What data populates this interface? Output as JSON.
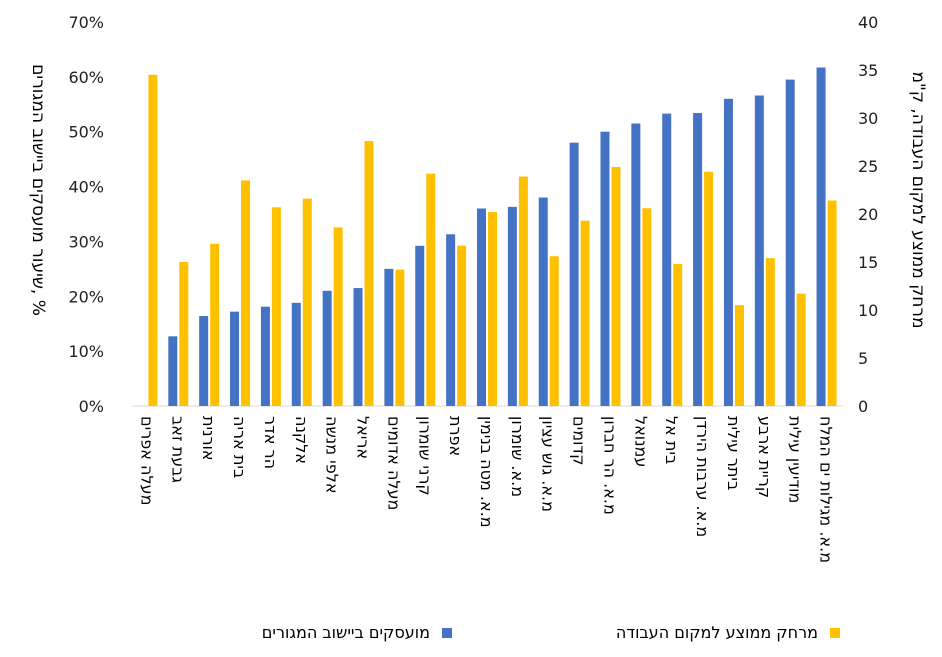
{
  "chart_data": {
    "type": "bar",
    "categories": [
      "מעלה אפרים",
      "גבעת זאב",
      "אורנית",
      "בית אריה",
      "הר אדר",
      "אלקנה",
      "אלפי מנשה",
      "אריאל",
      "מעלה אדומים",
      "קרני שומרון",
      "אפרת",
      "מ.א. מטה בנימין",
      "מ.א. שומרון",
      "מ.א. גוש עציון",
      "קדומים",
      "מ.א. הר חברון",
      "עמנואל",
      "בית אל",
      "מ.א. ערבות הירדן",
      "ביתר עילית",
      "קריית ארבע",
      "מודיעין עילית",
      "מ.א. מגילות ים המלח"
    ],
    "series": [
      {
        "name": "מועסקים ביישוב המגורים",
        "axis": "left",
        "color": "#4472C4",
        "values": [
          0,
          12.7,
          16.4,
          17.2,
          18.1,
          18.8,
          21.0,
          21.5,
          25.0,
          29.2,
          31.3,
          36.0,
          36.3,
          38.0,
          48.0,
          50.0,
          51.5,
          53.3,
          53.4,
          56.0,
          56.6,
          59.5,
          61.7
        ]
      },
      {
        "name": "מרחק ממוצע למקום העבודה",
        "axis": "right",
        "color": "#FFC000",
        "values": [
          34.5,
          15.0,
          16.9,
          23.5,
          20.7,
          21.6,
          18.6,
          27.6,
          14.2,
          24.2,
          16.7,
          20.2,
          23.9,
          15.6,
          19.3,
          24.9,
          20.6,
          14.8,
          24.4,
          10.5,
          15.4,
          11.7,
          21.4
        ]
      }
    ],
    "y_left": {
      "label": "שיעור מועסקים ביישוב המגורים, %",
      "min": 0,
      "max": 70,
      "step": 10,
      "tick_labels": [
        "0%",
        "10%",
        "20%",
        "30%",
        "40%",
        "50%",
        "60%",
        "70%"
      ]
    },
    "y_right": {
      "label": "מרחק ממוצע למקום העבודה, ק\"מ",
      "min": 0,
      "max": 40,
      "step": 5,
      "tick_labels": [
        "0",
        "5",
        "10",
        "15",
        "20",
        "25",
        "30",
        "35",
        "40"
      ]
    },
    "grid": false,
    "legend_position": "bottom"
  }
}
